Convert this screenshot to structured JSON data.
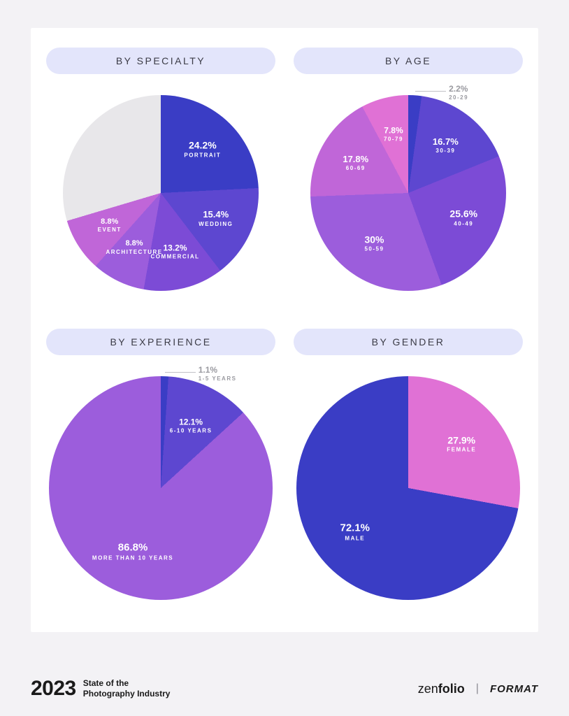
{
  "page": {
    "background": "#f3f2f5",
    "card_background": "#ffffff"
  },
  "charts": {
    "specialty": {
      "type": "pie",
      "title": "BY SPECIALTY",
      "diameter": 280,
      "slices": [
        {
          "label": "PORTRAIT",
          "value": 24.2,
          "color": "#3a3dc5",
          "pct_fontsize": 14
        },
        {
          "label": "WEDDING",
          "value": 15.4,
          "color": "#5d47d0",
          "pct_fontsize": 13
        },
        {
          "label": "COMMERCIAL",
          "value": 13.2,
          "color": "#7c4bd6",
          "pct_fontsize": 12
        },
        {
          "label": "ARCHITECTURE",
          "value": 8.8,
          "color": "#9c5ddc",
          "pct_fontsize": 11
        },
        {
          "label": "EVENT",
          "value": 8.8,
          "color": "#c066d8",
          "pct_fontsize": 11
        },
        {
          "label": "",
          "value": 29.6,
          "color": "#e8e7ea",
          "pct_fontsize": 0
        }
      ],
      "title_pill_bg": "#e3e5fb"
    },
    "age": {
      "type": "pie",
      "title": "BY AGE",
      "diameter": 280,
      "slices": [
        {
          "label": "20-29",
          "value": 2.2,
          "color": "#3a3dc5",
          "external": true,
          "pct_fontsize": 12
        },
        {
          "label": "30-39",
          "value": 16.7,
          "color": "#5d47d0",
          "pct_fontsize": 13
        },
        {
          "label": "40-49",
          "value": 25.6,
          "color": "#7c4bd6",
          "pct_fontsize": 14
        },
        {
          "label": "50-59",
          "value": 30.0,
          "color": "#9c5ddc",
          "pct_fontsize": 14,
          "display": "30%"
        },
        {
          "label": "60-69",
          "value": 17.8,
          "color": "#c066d8",
          "pct_fontsize": 13
        },
        {
          "label": "70-79",
          "value": 7.8,
          "color": "#e071d5",
          "pct_fontsize": 12
        }
      ],
      "title_pill_bg": "#e3e5fb"
    },
    "experience": {
      "type": "pie",
      "title": "BY EXPERIENCE",
      "diameter": 320,
      "slices": [
        {
          "label": "1-5 YEARS",
          "value": 1.1,
          "color": "#3a3dc5",
          "external": true,
          "pct_fontsize": 12
        },
        {
          "label": "6-10 YEARS",
          "value": 12.1,
          "color": "#5d47d0",
          "pct_fontsize": 12
        },
        {
          "label": "MORE THAN 10 YEARS",
          "value": 86.8,
          "color": "#9c5ddc",
          "pct_fontsize": 15
        }
      ],
      "title_pill_bg": "#e3e5fb"
    },
    "gender": {
      "type": "pie",
      "title": "BY GENDER",
      "diameter": 320,
      "slices": [
        {
          "label": "FEMALE",
          "value": 27.9,
          "color": "#e071d5",
          "pct_fontsize": 14
        },
        {
          "label": "MALE",
          "value": 72.1,
          "color": "#3a3dc5",
          "pct_fontsize": 15
        }
      ],
      "title_pill_bg": "#e3e5fb"
    }
  },
  "footer": {
    "year": "2023",
    "tag_line1": "State of the",
    "tag_line2": "Photography Industry",
    "brand1_light": "zen",
    "brand1_bold": "folio",
    "separator": "|",
    "brand2": "FORMAT"
  }
}
